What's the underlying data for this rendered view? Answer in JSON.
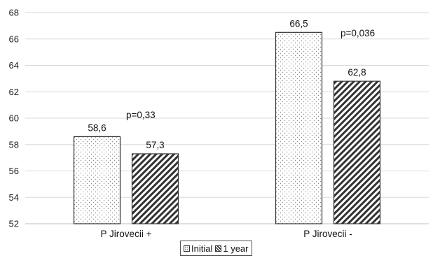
{
  "chart_data": {
    "type": "bar",
    "categories": [
      "P Jirovecii +",
      "P Jirovecii -"
    ],
    "series": [
      {
        "name": "Initial",
        "values": [
          58.6,
          66.5
        ],
        "labels": [
          "58,6",
          "66,5"
        ],
        "pattern": "dots"
      },
      {
        "name": "1 year",
        "values": [
          57.3,
          62.8
        ],
        "labels": [
          "57,3",
          "62,8"
        ],
        "pattern": "hatch"
      }
    ],
    "ylim": [
      52,
      68
    ],
    "yticks": [
      52,
      54,
      56,
      58,
      60,
      62,
      64,
      66,
      68
    ],
    "annotations": [
      "p=0,33",
      "p=0,036"
    ],
    "grid": true,
    "legend": "bottom",
    "colors": {
      "grid": "#d9d9d9",
      "bar_stroke": "#333333",
      "hatch": "#333333",
      "dots": "#8c8c8c"
    }
  }
}
